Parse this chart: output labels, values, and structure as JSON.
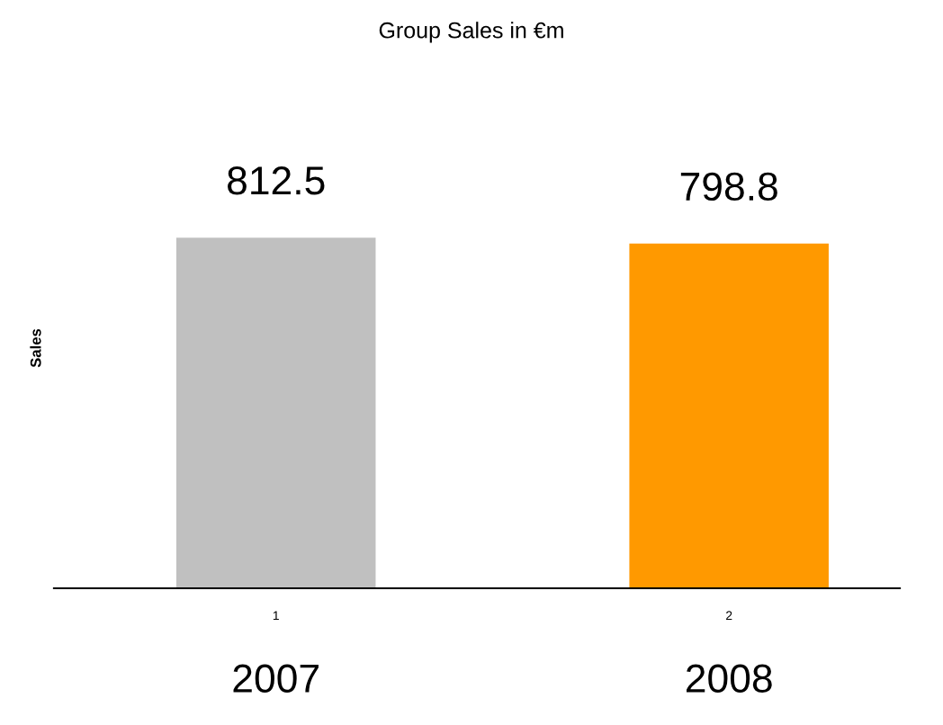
{
  "chart_data": {
    "type": "bar",
    "title": "Group Sales in €m",
    "ylabel": "Sales",
    "categories": [
      "1",
      "2"
    ],
    "values": [
      812.5,
      798.8
    ],
    "colors": [
      "#c0c0c0",
      "#ff9900"
    ],
    "data_labels": true,
    "annotations": [
      "2007",
      "2008"
    ]
  }
}
